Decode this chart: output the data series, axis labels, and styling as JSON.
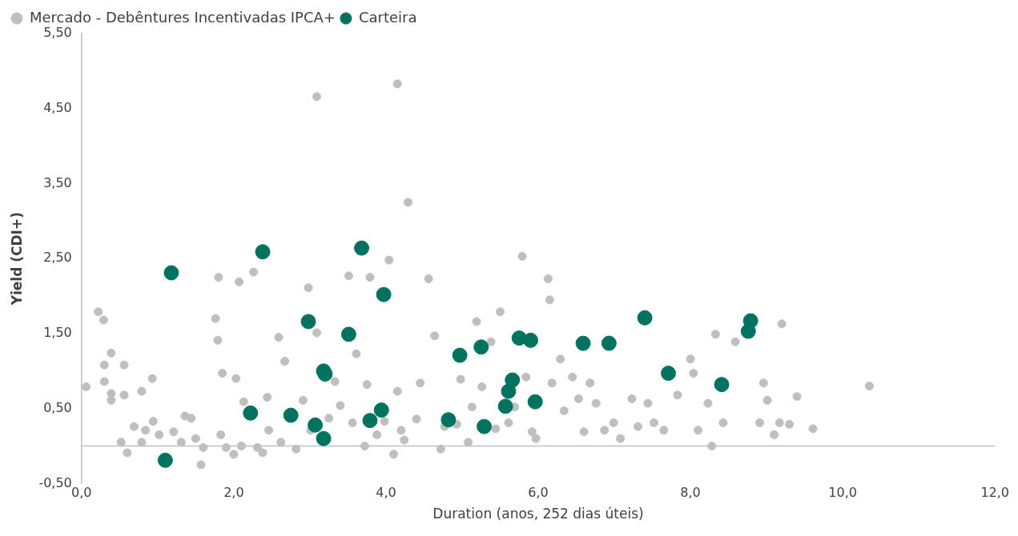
{
  "chart_data": {
    "type": "scatter",
    "xlabel": "Duration (anos, 252 dias úteis)",
    "ylabel": "Yield (CDI+)",
    "xlim": [
      0,
      12
    ],
    "xticks": [
      {
        "value": 0,
        "label": "0,0"
      },
      {
        "value": 2,
        "label": "2,0"
      },
      {
        "value": 4,
        "label": "4,0"
      },
      {
        "value": 6,
        "label": "6,0"
      },
      {
        "value": 8,
        "label": "8,0"
      },
      {
        "value": 10,
        "label": "10,0"
      },
      {
        "value": 12,
        "label": "12,0"
      }
    ],
    "ylim": [
      -0.5,
      5.5
    ],
    "yticks": [
      {
        "value": -0.5,
        "label": "-0,50"
      },
      {
        "value": 0.5,
        "label": "0,50"
      },
      {
        "value": 1.5,
        "label": "1,50"
      },
      {
        "value": 2.5,
        "label": "2,50"
      },
      {
        "value": 3.5,
        "label": "3,50"
      },
      {
        "value": 4.5,
        "label": "4,50"
      },
      {
        "value": 5.5,
        "label": "5,50"
      }
    ],
    "grid": false,
    "legend": "top left",
    "marker": "circle",
    "ref_lines": [
      {
        "axis": "y",
        "value": 0,
        "color": "#bfbfbf"
      }
    ],
    "series": [
      {
        "name": "Mercado - Debêntures Incentivadas IPCA+",
        "color": "#bfbfbf",
        "x": [
          0.06,
          0.22,
          0.29,
          0.3,
          0.3,
          0.39,
          0.39,
          0.39,
          0.56,
          0.56,
          0.52,
          0.6,
          0.69,
          0.79,
          0.79,
          0.84,
          0.93,
          0.94,
          1.02,
          1.21,
          1.31,
          1.36,
          1.44,
          1.5,
          1.57,
          1.6,
          1.76,
          1.8,
          1.79,
          1.85,
          1.83,
          1.9,
          2.0,
          2.03,
          2.07,
          2.1,
          2.13,
          2.26,
          2.31,
          2.38,
          2.44,
          2.46,
          2.59,
          2.62,
          2.67,
          2.82,
          2.91,
          2.98,
          3.01,
          3.09,
          3.09,
          3.25,
          3.33,
          3.4,
          3.51,
          3.56,
          3.61,
          3.72,
          3.75,
          3.79,
          3.88,
          3.98,
          4.04,
          4.1,
          4.15,
          4.15,
          4.2,
          4.24,
          4.29,
          4.4,
          4.45,
          4.56,
          4.64,
          4.72,
          4.77,
          4.93,
          4.98,
          5.08,
          5.13,
          5.19,
          5.26,
          5.38,
          5.44,
          5.5,
          5.61,
          5.69,
          5.79,
          5.84,
          5.92,
          5.97,
          6.13,
          6.15,
          6.18,
          6.29,
          6.34,
          6.45,
          6.53,
          6.6,
          6.68,
          6.76,
          6.87,
          6.99,
          7.08,
          7.23,
          7.31,
          7.44,
          7.52,
          7.65,
          7.83,
          8.0,
          8.04,
          8.1,
          8.23,
          8.28,
          8.33,
          8.43,
          8.59,
          8.91,
          8.96,
          9.01,
          9.1,
          9.17,
          9.2,
          9.3,
          9.4,
          9.61,
          10.35
        ],
        "values": [
          0.79,
          1.79,
          1.68,
          1.08,
          0.86,
          1.24,
          0.61,
          0.7,
          0.68,
          1.08,
          0.05,
          -0.09,
          0.26,
          0.73,
          0.05,
          0.21,
          0.9,
          0.33,
          0.15,
          0.19,
          0.05,
          0.4,
          0.37,
          0.1,
          -0.25,
          -0.02,
          1.7,
          2.25,
          1.41,
          0.97,
          0.15,
          -0.02,
          -0.11,
          0.9,
          2.19,
          0.0,
          0.59,
          2.32,
          -0.02,
          -0.09,
          0.65,
          0.21,
          1.45,
          0.05,
          1.13,
          -0.04,
          0.61,
          2.11,
          0.21,
          1.51,
          4.66,
          0.37,
          0.86,
          0.54,
          2.27,
          0.31,
          1.23,
          0.0,
          0.82,
          2.25,
          0.15,
          0.33,
          2.48,
          -0.11,
          4.83,
          0.73,
          0.21,
          0.08,
          3.25,
          0.36,
          0.84,
          2.23,
          1.47,
          -0.04,
          0.26,
          0.29,
          0.89,
          0.05,
          0.52,
          1.66,
          0.79,
          1.39,
          0.23,
          1.79,
          0.31,
          0.52,
          2.53,
          0.92,
          0.19,
          0.1,
          2.23,
          1.95,
          0.84,
          1.16,
          0.47,
          0.92,
          0.63,
          0.19,
          0.84,
          0.57,
          0.21,
          0.31,
          0.1,
          0.63,
          0.26,
          0.57,
          0.31,
          0.21,
          0.68,
          1.16,
          0.97,
          0.21,
          0.57,
          0.0,
          1.49,
          0.31,
          1.39,
          0.31,
          0.84,
          0.61,
          0.15,
          0.31,
          1.63,
          0.29,
          0.66,
          0.23,
          0.8
        ]
      },
      {
        "name": "Carteira",
        "color": "#007360",
        "x": [
          1.18,
          1.1,
          2.22,
          2.38,
          2.75,
          2.98,
          3.07,
          3.18,
          3.2,
          3.18,
          3.51,
          3.68,
          3.79,
          3.94,
          3.97,
          4.82,
          4.97,
          5.25,
          5.29,
          5.57,
          5.61,
          5.66,
          5.75,
          5.9,
          5.96,
          6.59,
          6.93,
          7.4,
          7.71,
          8.41,
          8.76,
          8.79
        ],
        "values": [
          2.31,
          -0.19,
          0.44,
          2.59,
          0.41,
          1.66,
          0.28,
          1.0,
          0.96,
          0.1,
          1.49,
          2.64,
          0.34,
          0.48,
          2.02,
          0.35,
          1.21,
          1.32,
          0.26,
          0.53,
          0.73,
          0.88,
          1.44,
          1.41,
          0.59,
          1.37,
          1.37,
          1.71,
          0.97,
          0.82,
          1.53,
          1.67
        ]
      }
    ]
  }
}
